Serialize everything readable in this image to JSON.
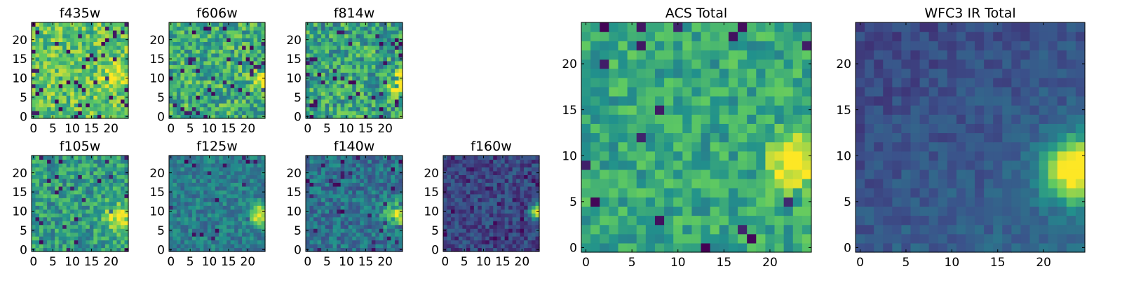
{
  "figure": {
    "colormap_stops": [
      "#440154",
      "#3b528b",
      "#21918c",
      "#5ec962",
      "#fde725"
    ]
  },
  "chart_data": [
    {
      "type": "heatmap",
      "id": "f435w",
      "title": "f435w",
      "grid_size": [
        25,
        25
      ],
      "xlim": [
        -0.5,
        24.5
      ],
      "ylim": [
        -0.5,
        24.5
      ],
      "xticks": [
        0,
        5,
        10,
        15,
        20
      ],
      "yticks": [
        0,
        5,
        10,
        15,
        20
      ],
      "value_range": [
        0,
        1
      ],
      "pattern": {
        "base": 0.72,
        "noise": 0.36,
        "dark_frac": 0.07,
        "blob_center": [
          21,
          11
        ],
        "blob_sigma": 2.2,
        "blob_amp": 0.25,
        "gradient": [
          0.0,
          0.0
        ],
        "seed": 11
      }
    },
    {
      "type": "heatmap",
      "id": "f606w",
      "title": "f606w",
      "grid_size": [
        25,
        25
      ],
      "xlim": [
        -0.5,
        24.5
      ],
      "ylim": [
        -0.5,
        24.5
      ],
      "xticks": [
        0,
        5,
        10,
        15,
        20
      ],
      "yticks": [
        0,
        5,
        10,
        15,
        20
      ],
      "value_range": [
        0,
        1
      ],
      "pattern": {
        "base": 0.62,
        "noise": 0.4,
        "dark_frac": 0.05,
        "blob_center": [
          24,
          9
        ],
        "blob_sigma": 1.8,
        "blob_amp": 0.45,
        "gradient": [
          0.0,
          0.0
        ],
        "seed": 23
      }
    },
    {
      "type": "heatmap",
      "id": "f814w",
      "title": "f814w",
      "grid_size": [
        25,
        25
      ],
      "xlim": [
        -0.5,
        24.5
      ],
      "ylim": [
        -0.5,
        24.5
      ],
      "xticks": [
        0,
        5,
        10,
        15,
        20
      ],
      "yticks": [
        0,
        5,
        10,
        15,
        20
      ],
      "value_range": [
        0,
        1
      ],
      "pattern": {
        "base": 0.58,
        "noise": 0.42,
        "dark_frac": 0.06,
        "blob_center": [
          24,
          9
        ],
        "blob_sigma": 2.0,
        "blob_amp": 0.55,
        "gradient": [
          0.0,
          0.0
        ],
        "seed": 37
      }
    },
    {
      "type": "heatmap",
      "id": "f105w",
      "title": "f105w",
      "grid_size": [
        25,
        25
      ],
      "xlim": [
        -0.5,
        24.5
      ],
      "ylim": [
        -0.5,
        24.5
      ],
      "xticks": [
        0,
        5,
        10,
        15,
        20
      ],
      "yticks": [
        0,
        5,
        10,
        15,
        20
      ],
      "value_range": [
        0,
        1
      ],
      "pattern": {
        "base": 0.55,
        "noise": 0.34,
        "dark_frac": 0.05,
        "blob_center": [
          22,
          8
        ],
        "blob_sigma": 2.6,
        "blob_amp": 0.45,
        "gradient": [
          0.0,
          0.0
        ],
        "seed": 41
      }
    },
    {
      "type": "heatmap",
      "id": "f125w",
      "title": "f125w",
      "grid_size": [
        25,
        25
      ],
      "xlim": [
        -0.5,
        24.5
      ],
      "ylim": [
        -0.5,
        24.5
      ],
      "xticks": [
        0,
        5,
        10,
        15,
        20
      ],
      "yticks": [
        0,
        5,
        10,
        15,
        20
      ],
      "value_range": [
        0,
        1
      ],
      "pattern": {
        "base": 0.42,
        "noise": 0.24,
        "dark_frac": 0.03,
        "blob_center": [
          23,
          9
        ],
        "blob_sigma": 2.0,
        "blob_amp": 0.6,
        "gradient": [
          0.0,
          0.0
        ],
        "seed": 53
      }
    },
    {
      "type": "heatmap",
      "id": "f140w",
      "title": "f140w",
      "grid_size": [
        25,
        25
      ],
      "xlim": [
        -0.5,
        24.5
      ],
      "ylim": [
        -0.5,
        24.5
      ],
      "xticks": [
        0,
        5,
        10,
        15,
        20
      ],
      "yticks": [
        0,
        5,
        10,
        15,
        20
      ],
      "value_range": [
        0,
        1
      ],
      "pattern": {
        "base": 0.38,
        "noise": 0.26,
        "dark_frac": 0.05,
        "blob_center": [
          23,
          9
        ],
        "blob_sigma": 2.2,
        "blob_amp": 0.6,
        "gradient": [
          0.0,
          0.0
        ],
        "seed": 67
      }
    },
    {
      "type": "heatmap",
      "id": "f160w",
      "title": "f160w",
      "grid_size": [
        25,
        25
      ],
      "xlim": [
        -0.5,
        24.5
      ],
      "ylim": [
        -0.5,
        24.5
      ],
      "xticks": [
        0,
        5,
        10,
        15,
        20
      ],
      "yticks": [
        0,
        5,
        10,
        15,
        20
      ],
      "value_range": [
        0,
        1
      ],
      "pattern": {
        "base": 0.22,
        "noise": 0.2,
        "dark_frac": 0.08,
        "blob_center": [
          24,
          10
        ],
        "blob_sigma": 1.3,
        "blob_amp": 0.8,
        "gradient": [
          0.0,
          0.0
        ],
        "seed": 79
      }
    },
    {
      "type": "heatmap",
      "id": "acs-total",
      "title": "ACS Total",
      "grid_size": [
        25,
        25
      ],
      "xlim": [
        -0.5,
        24.5
      ],
      "ylim": [
        -0.5,
        24.5
      ],
      "xticks": [
        0,
        5,
        10,
        15,
        20
      ],
      "yticks": [
        0,
        5,
        10,
        15,
        20
      ],
      "value_range": [
        0,
        1
      ],
      "pattern": {
        "base": 0.6,
        "noise": 0.28,
        "dark_frac": 0.035,
        "blob_center": [
          23,
          9.5
        ],
        "blob_sigma": 1.9,
        "blob_amp": 0.55,
        "gradient": [
          0.0,
          0.0
        ],
        "seed": 97
      }
    },
    {
      "type": "heatmap",
      "id": "wfc3-ir-total",
      "title": "WFC3 IR Total",
      "grid_size": [
        25,
        25
      ],
      "xlim": [
        -0.5,
        24.5
      ],
      "ylim": [
        -0.5,
        24.5
      ],
      "xticks": [
        0,
        5,
        10,
        15,
        20
      ],
      "yticks": [
        0,
        5,
        10,
        15,
        20
      ],
      "value_range": [
        0,
        1
      ],
      "pattern": {
        "base": 0.2,
        "noise": 0.12,
        "dark_frac": 0.0,
        "blob_center": [
          23.5,
          8.5
        ],
        "blob_sigma": 2.4,
        "blob_amp": 0.85,
        "gradient": [
          0.06,
          0.08
        ],
        "seed": 113
      }
    }
  ]
}
